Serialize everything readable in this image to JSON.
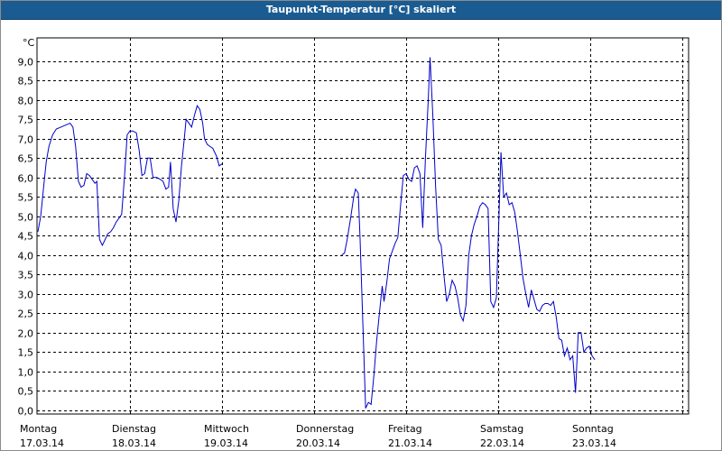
{
  "window": {
    "title": "Taupunkt-Temperatur [°C] skaliert"
  },
  "chart_data": {
    "type": "line",
    "title": "Taupunkt-Temperatur [°C] skaliert",
    "unit_label": "°C",
    "ylim": [
      -0.1,
      9.6
    ],
    "y_ticks": [
      "0,0",
      "0,5",
      "1,0",
      "1,5",
      "2,0",
      "2,5",
      "3,0",
      "3,5",
      "4,0",
      "4,5",
      "5,0",
      "5,5",
      "6,0",
      "6,5",
      "7,0",
      "7,5",
      "8,0",
      "8,5",
      "9,0"
    ],
    "x_range_days": [
      0,
      7.2
    ],
    "grid": true,
    "line_color": "#0000cc",
    "days": [
      {
        "name": "Montag",
        "date": "17.03.14"
      },
      {
        "name": "Dienstag",
        "date": "18.03.14"
      },
      {
        "name": "Mittwoch",
        "date": "19.03.14"
      },
      {
        "name": "Donnerstag",
        "date": "20.03.14"
      },
      {
        "name": "Freitag",
        "date": "21.03.14"
      },
      {
        "name": "Samstag",
        "date": "22.03.14"
      },
      {
        "name": "Sonntag",
        "date": "23.03.14"
      }
    ],
    "series": [
      {
        "segments": [
          [
            [
              0.0,
              4.6
            ],
            [
              0.03,
              5.0
            ],
            [
              0.06,
              5.7
            ],
            [
              0.09,
              6.4
            ],
            [
              0.12,
              6.8
            ],
            [
              0.16,
              7.1
            ],
            [
              0.2,
              7.25
            ],
            [
              0.25,
              7.3
            ],
            [
              0.3,
              7.35
            ],
            [
              0.35,
              7.4
            ],
            [
              0.38,
              7.3
            ],
            [
              0.41,
              6.8
            ],
            [
              0.44,
              5.9
            ],
            [
              0.47,
              5.75
            ],
            [
              0.5,
              5.8
            ],
            [
              0.53,
              6.1
            ],
            [
              0.56,
              6.05
            ],
            [
              0.59,
              5.95
            ],
            [
              0.62,
              5.85
            ],
            [
              0.64,
              5.9
            ],
            [
              0.67,
              4.4
            ],
            [
              0.7,
              4.25
            ],
            [
              0.73,
              4.4
            ],
            [
              0.76,
              4.55
            ],
            [
              0.79,
              4.6
            ],
            [
              0.82,
              4.7
            ],
            [
              0.85,
              4.85
            ],
            [
              0.88,
              4.95
            ],
            [
              0.91,
              5.05
            ],
            [
              0.94,
              6.0
            ],
            [
              0.97,
              7.1
            ],
            [
              1.0,
              7.2
            ],
            [
              1.03,
              7.2
            ],
            [
              1.07,
              7.15
            ],
            [
              1.1,
              6.7
            ],
            [
              1.13,
              6.05
            ],
            [
              1.16,
              6.1
            ],
            [
              1.19,
              6.5
            ],
            [
              1.22,
              6.5
            ],
            [
              1.25,
              6.0
            ],
            [
              1.29,
              6.0
            ],
            [
              1.33,
              5.95
            ],
            [
              1.36,
              5.9
            ],
            [
              1.39,
              5.7
            ],
            [
              1.42,
              5.75
            ],
            [
              1.44,
              6.4
            ],
            [
              1.47,
              5.2
            ],
            [
              1.5,
              4.85
            ],
            [
              1.53,
              5.4
            ],
            [
              1.56,
              6.3
            ],
            [
              1.59,
              7.0
            ],
            [
              1.61,
              7.5
            ],
            [
              1.64,
              7.4
            ],
            [
              1.67,
              7.3
            ],
            [
              1.7,
              7.6
            ],
            [
              1.73,
              7.85
            ],
            [
              1.76,
              7.75
            ],
            [
              1.79,
              7.4
            ],
            [
              1.81,
              7.0
            ],
            [
              1.84,
              6.85
            ],
            [
              1.87,
              6.8
            ],
            [
              1.9,
              6.75
            ],
            [
              1.94,
              6.55
            ],
            [
              1.97,
              6.3
            ],
            [
              2.0,
              6.35
            ]
          ],
          [
            [
              3.3,
              4.0
            ],
            [
              3.33,
              4.05
            ],
            [
              3.36,
              4.4
            ],
            [
              3.4,
              5.0
            ],
            [
              3.43,
              5.5
            ],
            [
              3.45,
              5.7
            ],
            [
              3.48,
              5.6
            ],
            [
              3.5,
              4.4
            ],
            [
              3.53,
              2.2
            ],
            [
              3.56,
              0.05
            ],
            [
              3.59,
              0.2
            ],
            [
              3.62,
              0.15
            ],
            [
              3.65,
              0.9
            ],
            [
              3.68,
              1.8
            ],
            [
              3.71,
              2.5
            ],
            [
              3.74,
              3.2
            ],
            [
              3.76,
              2.8
            ],
            [
              3.79,
              3.3
            ],
            [
              3.82,
              3.9
            ],
            [
              3.85,
              4.1
            ],
            [
              3.88,
              4.3
            ],
            [
              3.91,
              4.45
            ],
            [
              3.94,
              5.3
            ],
            [
              3.97,
              6.05
            ],
            [
              4.0,
              6.1
            ],
            [
              4.03,
              5.95
            ],
            [
              4.06,
              5.9
            ],
            [
              4.09,
              6.25
            ],
            [
              4.12,
              6.3
            ],
            [
              4.15,
              6.1
            ],
            [
              4.18,
              4.7
            ],
            [
              4.21,
              6.5
            ],
            [
              4.24,
              8.0
            ],
            [
              4.26,
              9.1
            ],
            [
              4.29,
              7.6
            ],
            [
              4.32,
              5.8
            ],
            [
              4.35,
              4.4
            ],
            [
              4.38,
              4.25
            ],
            [
              4.41,
              3.5
            ],
            [
              4.44,
              2.8
            ],
            [
              4.47,
              3.0
            ],
            [
              4.5,
              3.35
            ],
            [
              4.53,
              3.2
            ],
            [
              4.56,
              2.9
            ],
            [
              4.59,
              2.45
            ],
            [
              4.62,
              2.3
            ],
            [
              4.65,
              2.7
            ],
            [
              4.68,
              4.0
            ],
            [
              4.71,
              4.5
            ],
            [
              4.74,
              4.8
            ],
            [
              4.77,
              5.0
            ],
            [
              4.8,
              5.25
            ],
            [
              4.83,
              5.35
            ],
            [
              4.86,
              5.3
            ],
            [
              4.89,
              5.2
            ],
            [
              4.92,
              2.8
            ],
            [
              4.95,
              2.65
            ],
            [
              4.98,
              2.9
            ],
            [
              5.01,
              5.1
            ],
            [
              5.03,
              6.65
            ],
            [
              5.06,
              5.5
            ],
            [
              5.09,
              5.6
            ],
            [
              5.12,
              5.3
            ],
            [
              5.15,
              5.35
            ],
            [
              5.18,
              5.1
            ],
            [
              5.21,
              4.6
            ],
            [
              5.24,
              4.0
            ],
            [
              5.27,
              3.4
            ],
            [
              5.3,
              3.0
            ],
            [
              5.33,
              2.65
            ],
            [
              5.36,
              3.1
            ],
            [
              5.39,
              2.85
            ],
            [
              5.42,
              2.6
            ],
            [
              5.45,
              2.55
            ],
            [
              5.48,
              2.7
            ],
            [
              5.51,
              2.75
            ],
            [
              5.54,
              2.75
            ],
            [
              5.57,
              2.7
            ],
            [
              5.6,
              2.8
            ],
            [
              5.63,
              2.4
            ],
            [
              5.66,
              1.85
            ],
            [
              5.69,
              1.8
            ],
            [
              5.72,
              1.4
            ],
            [
              5.75,
              1.6
            ],
            [
              5.78,
              1.3
            ],
            [
              5.81,
              1.4
            ],
            [
              5.84,
              0.45
            ],
            [
              5.87,
              2.0
            ],
            [
              5.9,
              2.0
            ],
            [
              5.93,
              1.5
            ],
            [
              5.96,
              1.6
            ],
            [
              5.99,
              1.65
            ],
            [
              6.02,
              1.4
            ],
            [
              6.05,
              1.3
            ]
          ]
        ]
      }
    ]
  }
}
